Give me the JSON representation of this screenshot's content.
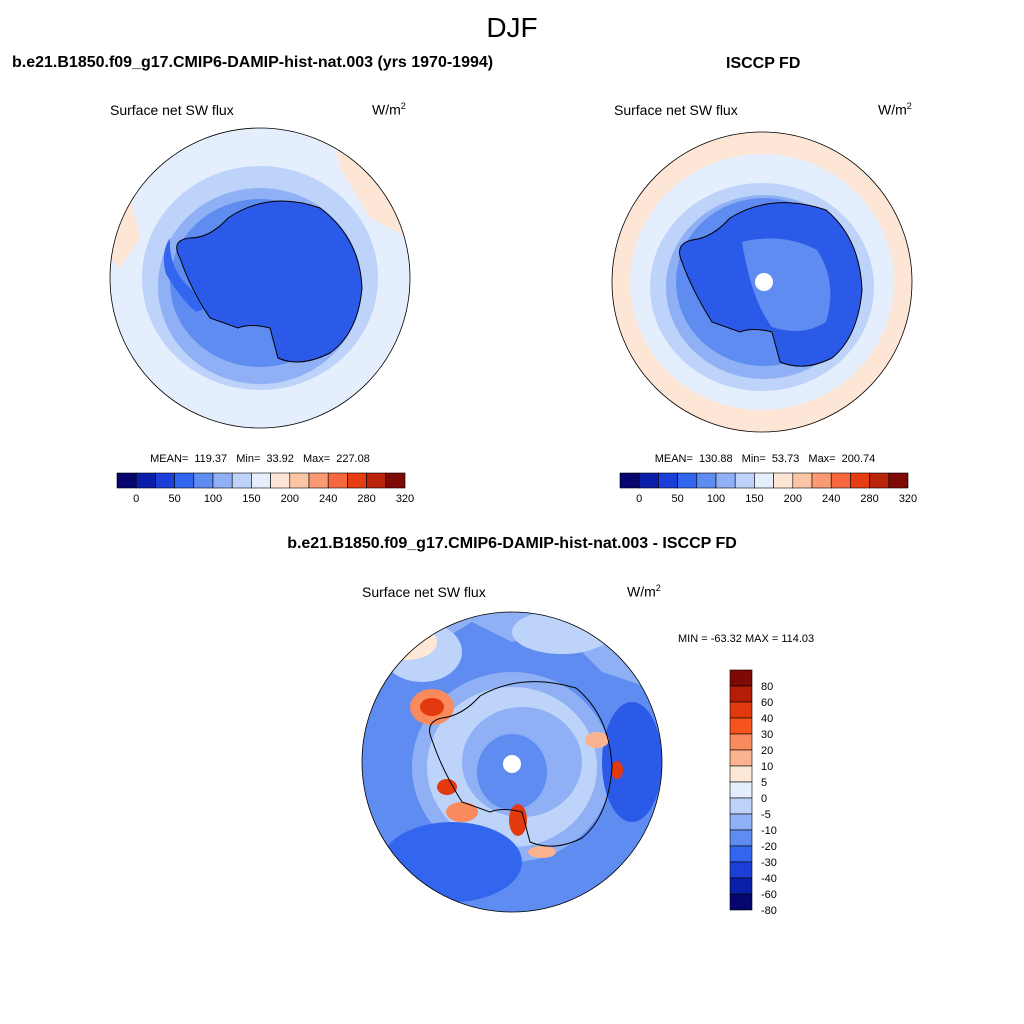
{
  "header": {
    "season": "DJF"
  },
  "panels": [
    {
      "title": "b.e21.B1850.f09_g17.CMIP6-DAMIP-hist-nat.003 (yrs 1970-1994)",
      "variable": "Surface net SW flux",
      "units": "W/m",
      "units_sup": "2",
      "stats": {
        "mean_label": "MEAN=",
        "mean": "119.37",
        "min_label": "Min=",
        "min": "33.92",
        "max_label": "Max=",
        "max": "227.08"
      }
    },
    {
      "title": "ISCCP FD",
      "variable": "Surface net SW flux",
      "units": "W/m",
      "units_sup": "2",
      "stats": {
        "mean_label": "MEAN=",
        "mean": "130.88",
        "min_label": "Min=",
        "min": "53.73",
        "max_label": "Max=",
        "max": "200.74"
      }
    }
  ],
  "diff": {
    "title": "b.e21.B1850.f09_g17.CMIP6-DAMIP-hist-nat.003 - ISCCP FD",
    "variable": "Surface net SW flux",
    "units": "W/m",
    "units_sup": "2",
    "minmax": "MIN = -63.32 MAX = 114.03"
  },
  "colorbar_abs": {
    "colors": [
      "#06066e",
      "#0a1fa8",
      "#1c3fd8",
      "#3366ee",
      "#5f8cf0",
      "#8fb0f4",
      "#bdd3fa",
      "#e4eefc",
      "#fde6d6",
      "#fbc5a6",
      "#f99a72",
      "#f6693e",
      "#e63c12",
      "#b8230a",
      "#7e0a06"
    ],
    "ticks": [
      "0",
      "50",
      "100",
      "150",
      "200",
      "240",
      "280",
      "320"
    ]
  },
  "colorbar_diff": {
    "colors": [
      "#7e0a06",
      "#b51e06",
      "#e23a0e",
      "#f5541e",
      "#f98a5e",
      "#fbb28e",
      "#fde8d8",
      "#e4eefc",
      "#bdd3fa",
      "#8fb0f4",
      "#5f8cf0",
      "#3366ee",
      "#1c3fd8",
      "#0a1fa8",
      "#06066e"
    ],
    "ticks": [
      "80",
      "60",
      "40",
      "30",
      "20",
      "10",
      "5",
      "0",
      "-5",
      "-10",
      "-20",
      "-30",
      "-40",
      "-60",
      "-80"
    ]
  }
}
